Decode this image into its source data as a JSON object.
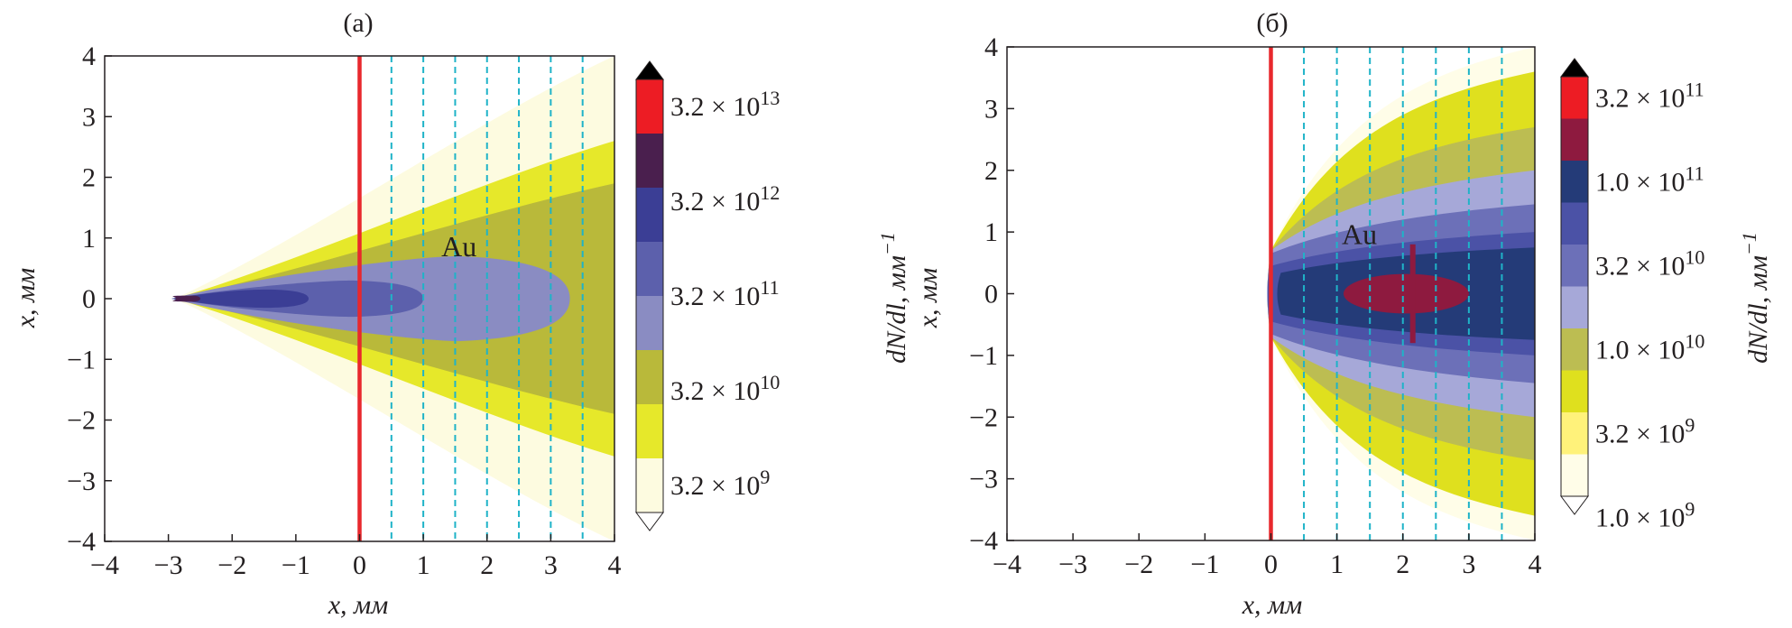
{
  "chart_data": [
    {
      "type": "filled-contour",
      "panel": "(a)",
      "xlabel": "x, мм",
      "ylabel": "x, мм",
      "xlim": [
        -4,
        4
      ],
      "ylim": [
        -4,
        4
      ],
      "xticks": [
        "−4",
        "−3",
        "−2",
        "−1",
        "0",
        "1",
        "2",
        "3",
        "4"
      ],
      "yticks": [
        "4",
        "3",
        "2",
        "1",
        "0",
        "−1",
        "−2",
        "−3",
        "−4"
      ],
      "target_line_x": 0,
      "detector_planes_x": [
        0.5,
        1,
        1.5,
        2,
        2.5,
        3,
        3.5
      ],
      "annotation": {
        "text": "Au",
        "x": 1.0,
        "y": 0.85
      },
      "colorbar": {
        "label": "",
        "tick_labels": [
          "3.2 × 10^13",
          "3.2 × 10^12",
          "3.2 × 10^11",
          "3.2 × 10^10",
          "3.2 × 10^9"
        ],
        "levels": [
          {
            "from": "3.2e9",
            "color": "#fdfbe0"
          },
          {
            "from": "1.0e10",
            "color": "#e6e82a"
          },
          {
            "from": "3.2e10",
            "color": "#b9b93a"
          },
          {
            "from": "1.0e11",
            "color": "#8a8cc2"
          },
          {
            "from": "3.2e11",
            "color": "#5c60ac"
          },
          {
            "from": "1.0e12",
            "color": "#3b3e95"
          },
          {
            "from": "3.2e12",
            "color": "#4a1f4e"
          },
          {
            "from": "1.0e13",
            "color": "#ed1c24"
          }
        ],
        "extend_top_color": "#000000",
        "extend_bottom_color": "#ffffff"
      },
      "regions": [
        {
          "level": 0,
          "color": "#fdfbe0",
          "apex_x": -2.9,
          "max_half_width": 4.0,
          "end_x": 4.0
        },
        {
          "level": 1,
          "color": "#e6e82a",
          "apex_x": -2.9,
          "max_half_width": 2.6,
          "end_x": 4.0
        },
        {
          "level": 2,
          "color": "#b9b93a",
          "apex_x": -2.9,
          "max_half_width": 1.9,
          "end_x": 4.0
        },
        {
          "level": 3,
          "color": "#8a8cc2",
          "apex_x": -2.95,
          "max_half_width": 0.7,
          "end_x": 3.3
        },
        {
          "level": 4,
          "color": "#5c60ac",
          "apex_x": -2.95,
          "max_half_width": 0.3,
          "end_x": 1.0
        },
        {
          "level": 5,
          "color": "#3b3e95",
          "apex_x": -2.95,
          "max_half_width": 0.15,
          "end_x": -0.8
        },
        {
          "level": 6,
          "color": "#4a1f4e",
          "apex_x": -2.9,
          "max_half_width": 0.05,
          "end_x": -2.5
        }
      ]
    },
    {
      "type": "filled-contour",
      "panel": "(б)",
      "xlabel": "x, мм",
      "ylabel": "x, мм",
      "xlim": [
        -4,
        4
      ],
      "ylim": [
        -4,
        4
      ],
      "xticks": [
        "−4",
        "−3",
        "−2",
        "−1",
        "0",
        "1",
        "2",
        "3",
        "4"
      ],
      "yticks": [
        "4",
        "3",
        "2",
        "1",
        "0",
        "−1",
        "−2",
        "−3",
        "−4"
      ],
      "target_line_x": 0,
      "detector_planes_x": [
        0.5,
        1,
        1.5,
        2,
        2.5,
        3,
        3.5
      ],
      "annotation": {
        "text": "Au",
        "x": 0.8,
        "y": 0.95
      },
      "colorbar": {
        "label": "dN/dl, мм^−1",
        "tick_labels": [
          "3.2 × 10^11",
          "1.0 × 10^11",
          "3.2 × 10^10",
          "1.0 × 10^10",
          "3.2 × 10^9",
          "1.0 × 10^9"
        ],
        "levels": [
          {
            "from": "1.0e9",
            "color": "#fffde8"
          },
          {
            "from": "2.2e9",
            "color": "#fff27a"
          },
          {
            "from": "3.2e9",
            "color": "#dfe01e"
          },
          {
            "from": "6.8e9",
            "color": "#bcbd52"
          },
          {
            "from": "1.0e10",
            "color": "#a6a8d8"
          },
          {
            "from": "2.2e10",
            "color": "#6c70b8"
          },
          {
            "from": "3.2e10",
            "color": "#4b52a6"
          },
          {
            "from": "6.8e10",
            "color": "#243b78"
          },
          {
            "from": "1.0e11",
            "color": "#8e1a3f"
          },
          {
            "from": "2.2e11",
            "color": "#ed1c24"
          }
        ],
        "extend_top_color": "#000000",
        "extend_bottom_color": "#ffffff"
      },
      "regions": [
        {
          "level": 0,
          "color": "#fffde8",
          "apex_x": 0.0,
          "half_width_at_4": 4.0
        },
        {
          "level": 1,
          "color": "#dfe01e",
          "apex_x": 0.0,
          "half_width_at_4": 3.6
        },
        {
          "level": 2,
          "color": "#bcbd52",
          "apex_x": 0.0,
          "half_width_at_4": 2.7
        },
        {
          "level": 3,
          "color": "#a6a8d8",
          "apex_x": 0.0,
          "half_width_at_4": 2.0
        },
        {
          "level": 4,
          "color": "#6c70b8",
          "apex_x": 0.0,
          "half_width_at_4": 1.45
        },
        {
          "level": 5,
          "color": "#4b52a6",
          "apex_x": 0.0,
          "half_width_at_4": 1.0
        },
        {
          "level": 6,
          "color": "#243b78",
          "apex_x": 0.15,
          "half_width_at_4": 0.75
        },
        {
          "level": 7,
          "color": "#8e1a3f",
          "ellipse_center_x": 2.05,
          "ellipse_rx": 0.95,
          "ellipse_ry": 0.32
        }
      ]
    }
  ]
}
